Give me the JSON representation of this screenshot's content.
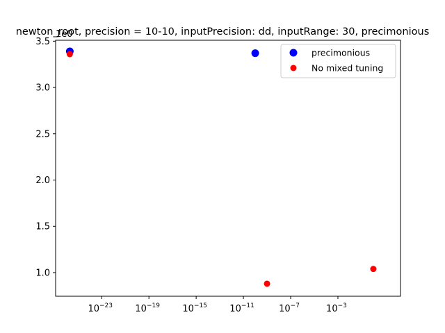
{
  "chart_data": {
    "type": "scatter",
    "title": "newton_root, precision = 10-10, inputPrecision: dd, inputRange: 30, precimonious",
    "xlabel": "",
    "ylabel": "",
    "xscale": "log",
    "yscale": "linear",
    "xlim_log10": [
      -26.9,
      2.3
    ],
    "ylim": [
      0.745,
      3.51
    ],
    "y_offset_label": "1e0",
    "x_ticks": [
      {
        "base": "10",
        "exp": "−23",
        "log10": -23
      },
      {
        "base": "10",
        "exp": "−19",
        "log10": -19
      },
      {
        "base": "10",
        "exp": "−15",
        "log10": -15
      },
      {
        "base": "10",
        "exp": "−11",
        "log10": -11
      },
      {
        "base": "10",
        "exp": "−7",
        "log10": -7
      },
      {
        "base": "10",
        "exp": "−3",
        "log10": -3
      }
    ],
    "y_ticks": [
      {
        "label": "1.0",
        "value": 1.0
      },
      {
        "label": "1.5",
        "value": 1.5
      },
      {
        "label": "2.0",
        "value": 2.0
      },
      {
        "label": "2.5",
        "value": 2.5
      },
      {
        "label": "3.0",
        "value": 3.0
      },
      {
        "label": "3.5",
        "value": 3.5
      }
    ],
    "legend": {
      "position": "upper right"
    },
    "series": [
      {
        "name": "precimonious",
        "color": "#0000ff",
        "marker": "large-circle",
        "points": [
          {
            "x_log10": -25.7,
            "y": 3.39
          },
          {
            "x_log10": -10.0,
            "y": 3.37
          }
        ]
      },
      {
        "name": "No mixed tuning",
        "color": "#ff0000",
        "marker": "small-circle",
        "points": [
          {
            "x_log10": -25.7,
            "y": 3.36
          },
          {
            "x_log10": -9.0,
            "y": 0.88
          },
          {
            "x_log10": 0.0,
            "y": 1.04
          }
        ]
      }
    ]
  }
}
